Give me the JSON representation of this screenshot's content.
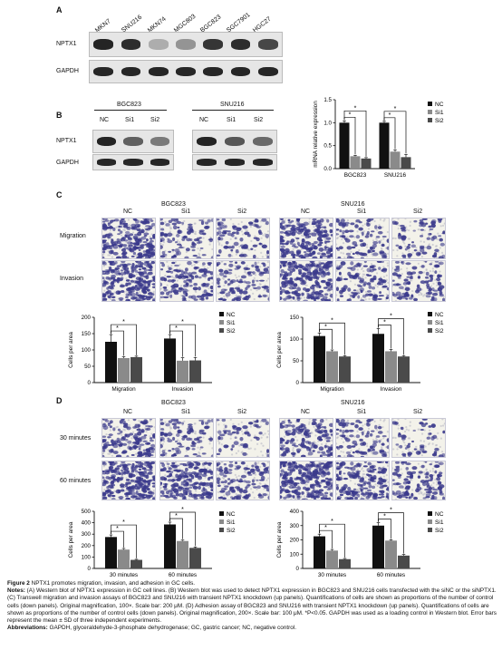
{
  "panel_a": {
    "letter": "A",
    "lanes": [
      "MKN7",
      "SNU216",
      "MKN74",
      "MGC803",
      "BGC823",
      "SGC7901",
      "HGC27"
    ],
    "rows": [
      "NPTX1",
      "GAPDH"
    ],
    "nptx1_band_intensity": [
      0.95,
      0.9,
      0.15,
      0.3,
      0.85,
      0.9,
      0.75
    ]
  },
  "panel_b": {
    "letter": "B",
    "cell_lines": [
      "BGC823",
      "SNU216"
    ],
    "lanes": [
      "NC",
      "Si1",
      "Si2"
    ],
    "rows": [
      "NPTX1",
      "GAPDH"
    ],
    "nptx1_band_intensity": [
      [
        0.95,
        0.6,
        0.45
      ],
      [
        0.95,
        0.65,
        0.55
      ]
    ]
  },
  "panel_c": {
    "letter": "C",
    "cell_lines": [
      "BGC823",
      "SNU216"
    ],
    "columns": [
      "NC",
      "Si1",
      "Si2"
    ],
    "rows": [
      "Migration",
      "Invasion"
    ],
    "cell_density": [
      [
        0.8,
        0.35,
        0.3
      ],
      [
        0.9,
        0.45,
        0.4
      ]
    ]
  },
  "panel_d": {
    "letter": "D",
    "cell_lines": [
      "BGC823",
      "SNU216"
    ],
    "columns": [
      "NC",
      "Si1",
      "Si2"
    ],
    "rows": [
      "30 minutes",
      "60 minutes"
    ],
    "cell_density": [
      [
        0.55,
        0.35,
        0.2
      ],
      [
        0.95,
        0.7,
        0.45
      ]
    ]
  },
  "legend": [
    "NC",
    "Si1",
    "Si2"
  ],
  "colors": {
    "NC": "#111111",
    "Si1": "#8a8a8a",
    "Si2": "#4a4a4a",
    "stain": "#3b3a8c",
    "well_bg": "#f3f2ea"
  },
  "chart_data": [
    {
      "type": "bar",
      "panel": "B",
      "ylabel": "mRNA relative expression",
      "categories": [
        "BGC823",
        "SNU216"
      ],
      "ylim": [
        0,
        1.5
      ],
      "yticks": [
        "0.0",
        "0.5",
        "1.0",
        "1.5"
      ],
      "series": [
        {
          "name": "NC",
          "values": [
            1.0,
            1.0
          ]
        },
        {
          "name": "Si1",
          "values": [
            0.27,
            0.37
          ]
        },
        {
          "name": "Si2",
          "values": [
            0.22,
            0.25
          ]
        }
      ],
      "errors": [
        [
          0.04,
          0.03
        ],
        [
          0.02,
          0.04
        ],
        [
          0.02,
          0.06
        ]
      ],
      "significance": "*"
    },
    {
      "type": "bar",
      "panel": "C",
      "ylabel": "Cells per area",
      "categories": [
        "Migration",
        "Invasion"
      ],
      "ylim": [
        0,
        200
      ],
      "yticks": [
        "0",
        "50",
        "100",
        "150",
        "200"
      ],
      "series": [
        {
          "name": "NC",
          "values": [
            125,
            135
          ]
        },
        {
          "name": "Si1",
          "values": [
            75,
            67
          ]
        },
        {
          "name": "Si2",
          "values": [
            78,
            68
          ]
        }
      ],
      "errors": [
        [
          22,
          12
        ],
        [
          4,
          9
        ],
        [
          3,
          9
        ]
      ],
      "significance": "*"
    },
    {
      "type": "bar",
      "panel": "C",
      "ylabel": "Cells per area",
      "categories": [
        "Migration",
        "Invasion"
      ],
      "ylim": [
        0,
        150
      ],
      "yticks": [
        "0",
        "50",
        "100",
        "150"
      ],
      "series": [
        {
          "name": "NC",
          "values": [
            107,
            112
          ]
        },
        {
          "name": "Si1",
          "values": [
            72,
            72
          ]
        },
        {
          "name": "Si2",
          "values": [
            60,
            60
          ]
        }
      ],
      "errors": [
        [
          7,
          12
        ],
        [
          3,
          4
        ],
        [
          2,
          2
        ]
      ],
      "significance": "*"
    },
    {
      "type": "bar",
      "panel": "D",
      "ylabel": "Cells per area",
      "categories": [
        "30 minutes",
        "60 minutes"
      ],
      "ylim": [
        0,
        500
      ],
      "yticks": [
        "0",
        "100",
        "200",
        "300",
        "400",
        "500"
      ],
      "series": [
        {
          "name": "NC",
          "values": [
            275,
            385
          ]
        },
        {
          "name": "Si1",
          "values": [
            165,
            240
          ]
        },
        {
          "name": "Si2",
          "values": [
            75,
            180
          ]
        }
      ],
      "errors": [
        [
          18,
          20
        ],
        [
          10,
          8
        ],
        [
          5,
          8
        ]
      ],
      "significance": "*"
    },
    {
      "type": "bar",
      "panel": "D",
      "ylabel": "Cells per area",
      "categories": [
        "30 minutes",
        "60 minutes"
      ],
      "ylim": [
        0,
        400
      ],
      "yticks": [
        "0",
        "100",
        "200",
        "300",
        "400"
      ],
      "series": [
        {
          "name": "NC",
          "values": [
            225,
            300
          ]
        },
        {
          "name": "Si1",
          "values": [
            125,
            195
          ]
        },
        {
          "name": "Si2",
          "values": [
            65,
            90
          ]
        }
      ],
      "errors": [
        [
          15,
          20
        ],
        [
          8,
          6
        ],
        [
          5,
          8
        ]
      ],
      "significance": "*"
    }
  ],
  "caption": {
    "title_bold": "Figure 2",
    "title_rest": " NPTX1 promotes migration, invasion, and adhesion in GC cells.",
    "notes_bold": "Notes:",
    "notes_rest": " (A) Western blot of NPTX1 expression in GC cell lines. (B) Western blot was used to detect NPTX1 expression in BGC823 and SNU216 cells transfected with the siNC or the siNPTX1. (C) Transwell migration and invasion assays of BGC823 and SNU216 with transient NPTX1 knockdown (up panels). Quantifications of cells are shown as proportions of the number of control cells (down panels). Original magnification, 100×. Scale bar: 200 μM. (D) Adhesion assay of BGC823 and SNU216 with transient NPTX1 knockdown (up panels). Quantifications of cells are shown as proportions of the number of control cells (down panels). Original magnification, 200×. Scale bar: 100 μM. *P<0.05. GAPDH was used as a loading control in Western blot. Error bars represent the mean ± SD of three independent experiments.",
    "abbr_bold": "Abbreviations:",
    "abbr_rest": " GAPDH, glyceraldehyde-3-phosphate dehydrogenase; GC, gastric cancer; NC, negative control."
  }
}
